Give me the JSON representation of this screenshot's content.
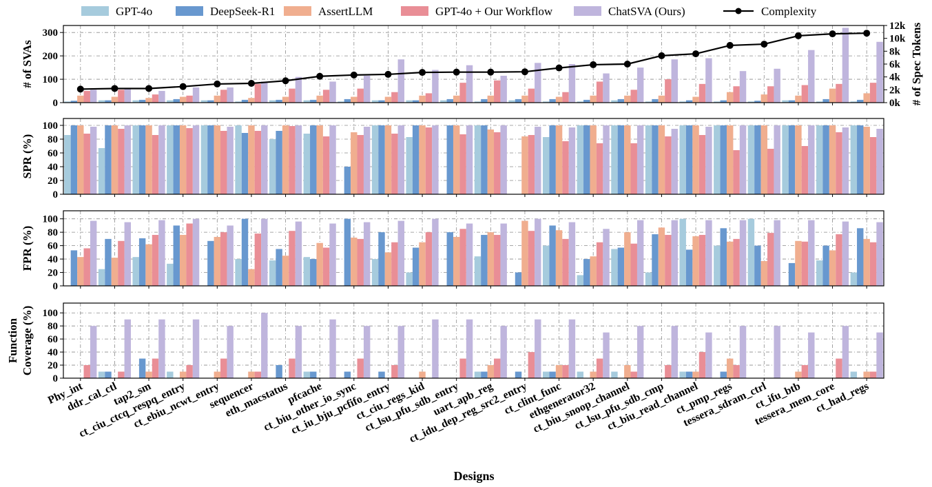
{
  "chart_data": {
    "type": "bar",
    "xlabel": "Designs",
    "legend_position": "top",
    "grid": true,
    "legend": [
      {
        "name": "GPT-4o",
        "color": "#a6cbdd",
        "kind": "bar"
      },
      {
        "name": "DeepSeek-R1",
        "color": "#6898cf",
        "kind": "bar"
      },
      {
        "name": "AssertLLM",
        "color": "#f0ae8f",
        "kind": "bar"
      },
      {
        "name": "GPT-4o + Our Workflow",
        "color": "#e98e96",
        "kind": "bar"
      },
      {
        "name": "ChatSVA (Ours)",
        "color": "#bfb5dd",
        "kind": "bar"
      },
      {
        "name": "Complexity",
        "color": "#000000",
        "kind": "line"
      }
    ],
    "categories": [
      "Phy_int",
      "ddr_cal_ctl",
      "tap2_sm",
      "ct_ciu_ctcq_respq_entry",
      "ct_ebiu_ncwt_entry",
      "sequencer",
      "eth_macstatus",
      "pfcache",
      "ct_biu_other_io_sync",
      "ct_iu_bju_pcfifo_entry",
      "ct_ciu_regs_kid",
      "ct_lsu_pfu_sdb_entry",
      "uart_apb_reg",
      "ct_idu_dep_reg_src2_entry",
      "ct_clint_func",
      "ethgenerator32",
      "ct_biu_snoop_channel",
      "ct_lsu_pfu_sdb_cmp",
      "ct_biu_read_channel",
      "ct_pmp_regs",
      "tessera_sdram_ctrl",
      "ct_ifu_btb",
      "tessera_mem_core",
      "ct_had_regs"
    ],
    "panels": [
      {
        "ylabel": "# of SVAs",
        "ylim": [
          0,
          330
        ],
        "yticks": [
          0,
          100,
          200,
          300
        ],
        "series": [
          {
            "name": "GPT-4o",
            "values": [
              5,
              10,
              10,
              10,
              10,
              5,
              10,
              10,
              5,
              10,
              10,
              10,
              5,
              10,
              5,
              5,
              10,
              5,
              5,
              5,
              5,
              10,
              5,
              5
            ]
          },
          {
            "name": "DeepSeek-R1",
            "values": [
              8,
              10,
              12,
              15,
              10,
              12,
              12,
              12,
              15,
              10,
              10,
              15,
              15,
              15,
              15,
              12,
              15,
              15,
              10,
              10,
              8,
              10,
              15,
              12
            ]
          },
          {
            "name": "AssertLLM",
            "values": [
              30,
              25,
              20,
              25,
              30,
              20,
              25,
              30,
              25,
              25,
              30,
              30,
              30,
              30,
              25,
              30,
              30,
              30,
              25,
              45,
              35,
              30,
              60,
              40
            ]
          },
          {
            "name": "GPT-4o + Our Workflow",
            "values": [
              50,
              55,
              35,
              30,
              55,
              80,
              60,
              55,
              60,
              45,
              40,
              85,
              95,
              60,
              45,
              90,
              55,
              100,
              80,
              70,
              70,
              75,
              80,
              85
            ]
          },
          {
            "name": "ChatSVA (Ours)",
            "values": [
              55,
              60,
              50,
              65,
              65,
              90,
              110,
              90,
              115,
              185,
              140,
              160,
              115,
              170,
              165,
              125,
              150,
              185,
              190,
              135,
              145,
              225,
              320,
              260
            ]
          }
        ],
        "complexity": {
          "name": "Complexity",
          "y2label": "# of Spec Tokens",
          "y2lim": [
            0,
            12000
          ],
          "y2ticks": [
            0,
            2000,
            4000,
            6000,
            8000,
            10000,
            12000
          ],
          "y2ticklabels": [
            "0k",
            "2k",
            "4k",
            "6k",
            "8k",
            "10k",
            "12k"
          ],
          "values": [
            2100,
            2200,
            2200,
            2500,
            2900,
            3000,
            3400,
            4100,
            4300,
            4400,
            4700,
            4750,
            4750,
            4800,
            5400,
            5900,
            6000,
            7300,
            7600,
            8900,
            9100,
            10400,
            10700,
            10800
          ]
        }
      },
      {
        "ylabel": "SPR (%)",
        "ylim": [
          0,
          110
        ],
        "yticks": [
          0,
          20,
          40,
          60,
          80,
          100
        ],
        "series": [
          {
            "name": "GPT-4o",
            "values": [
              86,
              67,
              100,
              100,
              100,
              100,
              80,
              88,
              0,
              100,
              83,
              0,
              100,
              0,
              83,
              100,
              100,
              100,
              100,
              100,
              100,
              100,
              100,
              100
            ]
          },
          {
            "name": "DeepSeek-R1",
            "values": [
              100,
              100,
              100,
              100,
              100,
              89,
              92,
              100,
              40,
              100,
              100,
              100,
              100,
              0,
              100,
              100,
              100,
              100,
              100,
              100,
              100,
              100,
              100,
              100
            ]
          },
          {
            "name": "AssertLLM",
            "values": [
              100,
              100,
              100,
              100,
              100,
              100,
              100,
              100,
              90,
              100,
              100,
              100,
              94,
              84,
              100,
              100,
              100,
              100,
              100,
              100,
              100,
              100,
              100,
              98
            ]
          },
          {
            "name": "GPT-4o + Our Workflow",
            "values": [
              88,
              95,
              86,
              96,
              92,
              92,
              99,
              84,
              86,
              88,
              97,
              87,
              90,
              86,
              77,
              74,
              74,
              84,
              86,
              64,
              66,
              70,
              90,
              83
            ]
          },
          {
            "name": "ChatSVA (Ours)",
            "values": [
              98,
              100,
              100,
              100,
              98,
              100,
              100,
              100,
              98,
              100,
              100,
              100,
              100,
              98,
              97,
              100,
              100,
              95,
              98,
              100,
              100,
              100,
              97,
              95
            ]
          }
        ]
      },
      {
        "ylabel": "FPR (%)",
        "ylim": [
          0,
          112
        ],
        "yticks": [
          0,
          20,
          40,
          60,
          80,
          100
        ],
        "series": [
          {
            "name": "GPT-4o",
            "values": [
              0,
              25,
              43,
              33,
              0,
              40,
              38,
              43,
              0,
              40,
              20,
              0,
              44,
              0,
              60,
              16,
              55,
              20,
              100,
              60,
              100,
              0,
              38,
              20
            ]
          },
          {
            "name": "DeepSeek-R1",
            "values": [
              53,
              70,
              71,
              90,
              67,
              100,
              55,
              40,
              100,
              80,
              57,
              80,
              76,
              20,
              90,
              40,
              57,
              77,
              54,
              86,
              60,
              34,
              60,
              86
            ]
          },
          {
            "name": "AssertLLM",
            "values": [
              43,
              42,
              62,
              76,
              73,
              25,
              45,
              64,
              72,
              50,
              65,
              73,
              80,
              97,
              83,
              44,
              80,
              87,
              74,
              66,
              37,
              67,
              53,
              70
            ]
          },
          {
            "name": "GPT-4o + Our Workflow",
            "values": [
              56,
              67,
              76,
              93,
              80,
              78,
              82,
              57,
              70,
              65,
              80,
              85,
              76,
              82,
              70,
              65,
              63,
              76,
              76,
              70,
              79,
              66,
              77,
              65
            ]
          },
          {
            "name": "ChatSVA (Ours)",
            "values": [
              97,
              95,
              98,
              100,
              90,
              100,
              96,
              93,
              95,
              97,
              100,
              93,
              93,
              100,
              95,
              85,
              98,
              98,
              98,
              98,
              98,
              98,
              96,
              95
            ]
          }
        ]
      },
      {
        "ylabel": "Function Coverage (%)",
        "ylim": [
          0,
          115
        ],
        "yticks": [
          0,
          20,
          40,
          60,
          80,
          100
        ],
        "series": [
          {
            "name": "GPT-4o",
            "values": [
              0,
              10,
              0,
              10,
              0,
              0,
              0,
              10,
              0,
              0,
              0,
              0,
              10,
              0,
              10,
              10,
              10,
              0,
              10,
              0,
              0,
              0,
              0,
              10
            ]
          },
          {
            "name": "DeepSeek-R1",
            "values": [
              0,
              10,
              30,
              0,
              0,
              0,
              20,
              10,
              10,
              10,
              0,
              0,
              10,
              10,
              10,
              0,
              0,
              0,
              10,
              10,
              0,
              0,
              0,
              0
            ]
          },
          {
            "name": "AssertLLM",
            "values": [
              0,
              0,
              10,
              10,
              10,
              10,
              0,
              0,
              0,
              0,
              10,
              0,
              20,
              0,
              20,
              10,
              20,
              0,
              10,
              30,
              0,
              10,
              0,
              10
            ]
          },
          {
            "name": "GPT-4o + Our Workflow",
            "values": [
              20,
              10,
              30,
              20,
              30,
              10,
              30,
              0,
              30,
              20,
              0,
              30,
              30,
              40,
              20,
              30,
              10,
              20,
              40,
              20,
              0,
              20,
              30,
              10
            ]
          },
          {
            "name": "ChatSVA (Ours)",
            "values": [
              80,
              90,
              90,
              90,
              80,
              100,
              80,
              90,
              80,
              80,
              90,
              90,
              80,
              90,
              90,
              70,
              80,
              80,
              70,
              80,
              80,
              70,
              80,
              70
            ]
          }
        ]
      }
    ]
  }
}
